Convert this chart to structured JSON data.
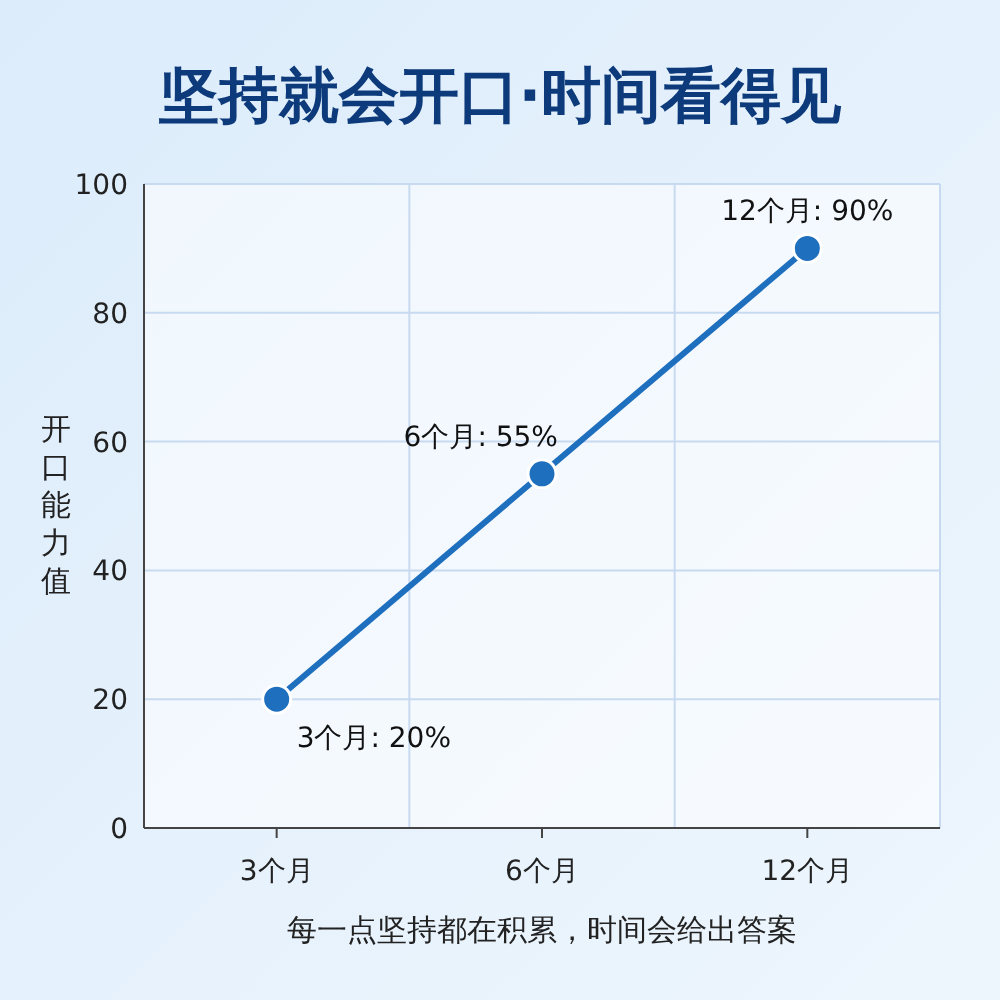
{
  "chart_data": {
    "type": "line",
    "title": "坚持就会开口·时间看得见",
    "xlabel": "每一点坚持都在积累，时间会给出答案",
    "ylabel": "开口能力值",
    "categories": [
      "3个月",
      "6个月",
      "12个月"
    ],
    "series": [
      {
        "color": "#1f6fbf",
        "values": [
          20,
          55,
          90
        ],
        "value_labels": [
          "3个月: 20%",
          "6个月: 55%",
          "12个月: 90%"
        ]
      }
    ],
    "ylim": [
      0,
      100
    ],
    "yticks": [
      0,
      20,
      40,
      60,
      80,
      100
    ],
    "grid": true,
    "marker": "circle",
    "line_style": "solid"
  }
}
